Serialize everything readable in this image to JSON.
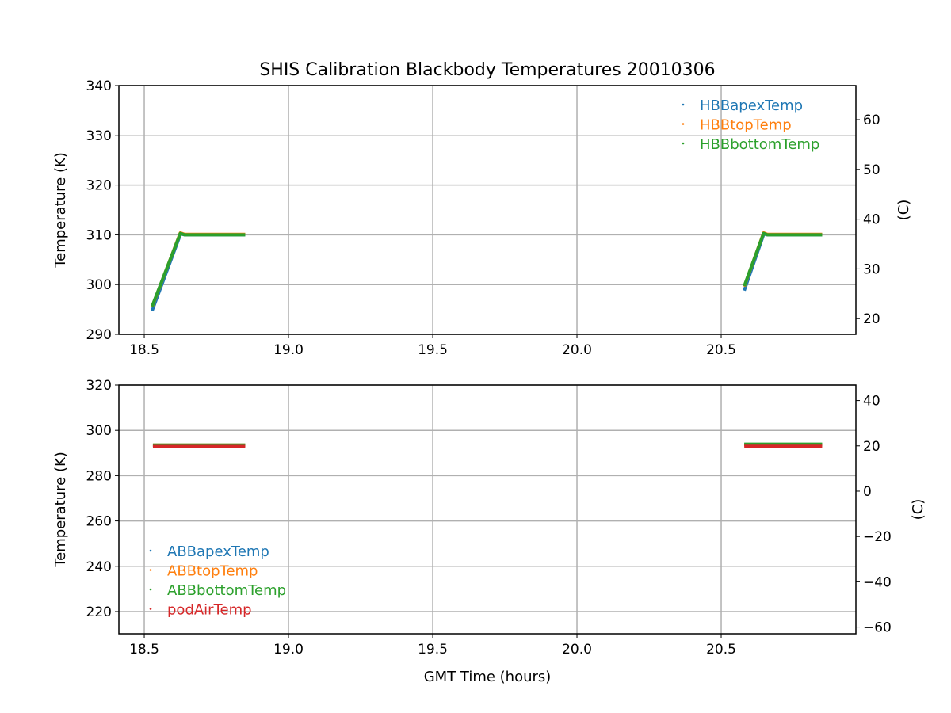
{
  "chart_data": [
    {
      "type": "scatter",
      "title": "SHIS Calibration Blackbody Temperatures 20010306",
      "xlabel": "",
      "ylabel": "Temperature (K)",
      "y2label": "(C)",
      "xlim": [
        18.412,
        20.967
      ],
      "ylim": [
        290,
        340
      ],
      "xticks": [
        "18.5",
        "19.0",
        "19.5",
        "20.0",
        "20.5"
      ],
      "yticks": [
        "290",
        "300",
        "310",
        "320",
        "330",
        "340"
      ],
      "y2ticks": [
        "20",
        "30",
        "40",
        "50",
        "60"
      ],
      "grid": true,
      "legend_position": "top-right",
      "series": [
        {
          "name": "HBBapexTemp",
          "color": "#1f77b4",
          "x": [
            18.527,
            18.626,
            18.64,
            18.85,
            20.58,
            20.648,
            20.66,
            20.85
          ],
          "y": [
            294.7,
            310.2,
            310.0,
            310.0,
            298.8,
            310.2,
            310.0,
            310.0
          ]
        },
        {
          "name": "HBBtopTemp",
          "color": "#ff7f0e",
          "x": [
            18.527,
            18.625,
            18.64,
            18.85,
            20.58,
            20.647,
            20.66,
            20.85
          ],
          "y": [
            295.5,
            310.4,
            310.1,
            310.1,
            299.6,
            310.4,
            310.1,
            310.1
          ]
        },
        {
          "name": "HBBbottomTemp",
          "color": "#2ca02c",
          "x": [
            18.527,
            18.625,
            18.64,
            18.85,
            20.58,
            20.647,
            20.66,
            20.85
          ],
          "y": [
            295.6,
            310.3,
            310.0,
            310.0,
            299.7,
            310.3,
            310.0,
            310.0
          ]
        }
      ]
    },
    {
      "type": "scatter",
      "title": "",
      "xlabel": "GMT Time (hours)",
      "ylabel": "Temperature (K)",
      "y2label": "(C)",
      "xlim": [
        18.412,
        20.967
      ],
      "ylim": [
        210.2,
        320
      ],
      "xticks": [
        "18.5",
        "19.0",
        "19.5",
        "20.0",
        "20.5"
      ],
      "yticks": [
        "220",
        "240",
        "260",
        "280",
        "300",
        "320"
      ],
      "y2ticks": [
        "−60",
        "−40",
        "−20",
        "0",
        "20",
        "40"
      ],
      "grid": true,
      "legend_position": "lower-left",
      "series": [
        {
          "name": "ABBapexTemp",
          "color": "#1f77b4",
          "segments": [
            [
              18.53,
              18.85,
              293.4
            ],
            [
              20.58,
              20.85,
              293.7
            ]
          ]
        },
        {
          "name": "ABBtopTemp",
          "color": "#ff7f0e",
          "segments": [
            [
              18.53,
              18.85,
              293.5
            ],
            [
              20.58,
              20.85,
              293.6
            ]
          ]
        },
        {
          "name": "ABBbottomTemp",
          "color": "#2ca02c",
          "segments": [
            [
              18.53,
              18.85,
              293.5
            ],
            [
              20.58,
              20.85,
              293.9
            ]
          ]
        },
        {
          "name": "podAirTemp",
          "color": "#d62728",
          "segments": [
            [
              18.53,
              18.85,
              292.9
            ],
            [
              20.58,
              20.85,
              293.0
            ]
          ]
        }
      ]
    }
  ]
}
